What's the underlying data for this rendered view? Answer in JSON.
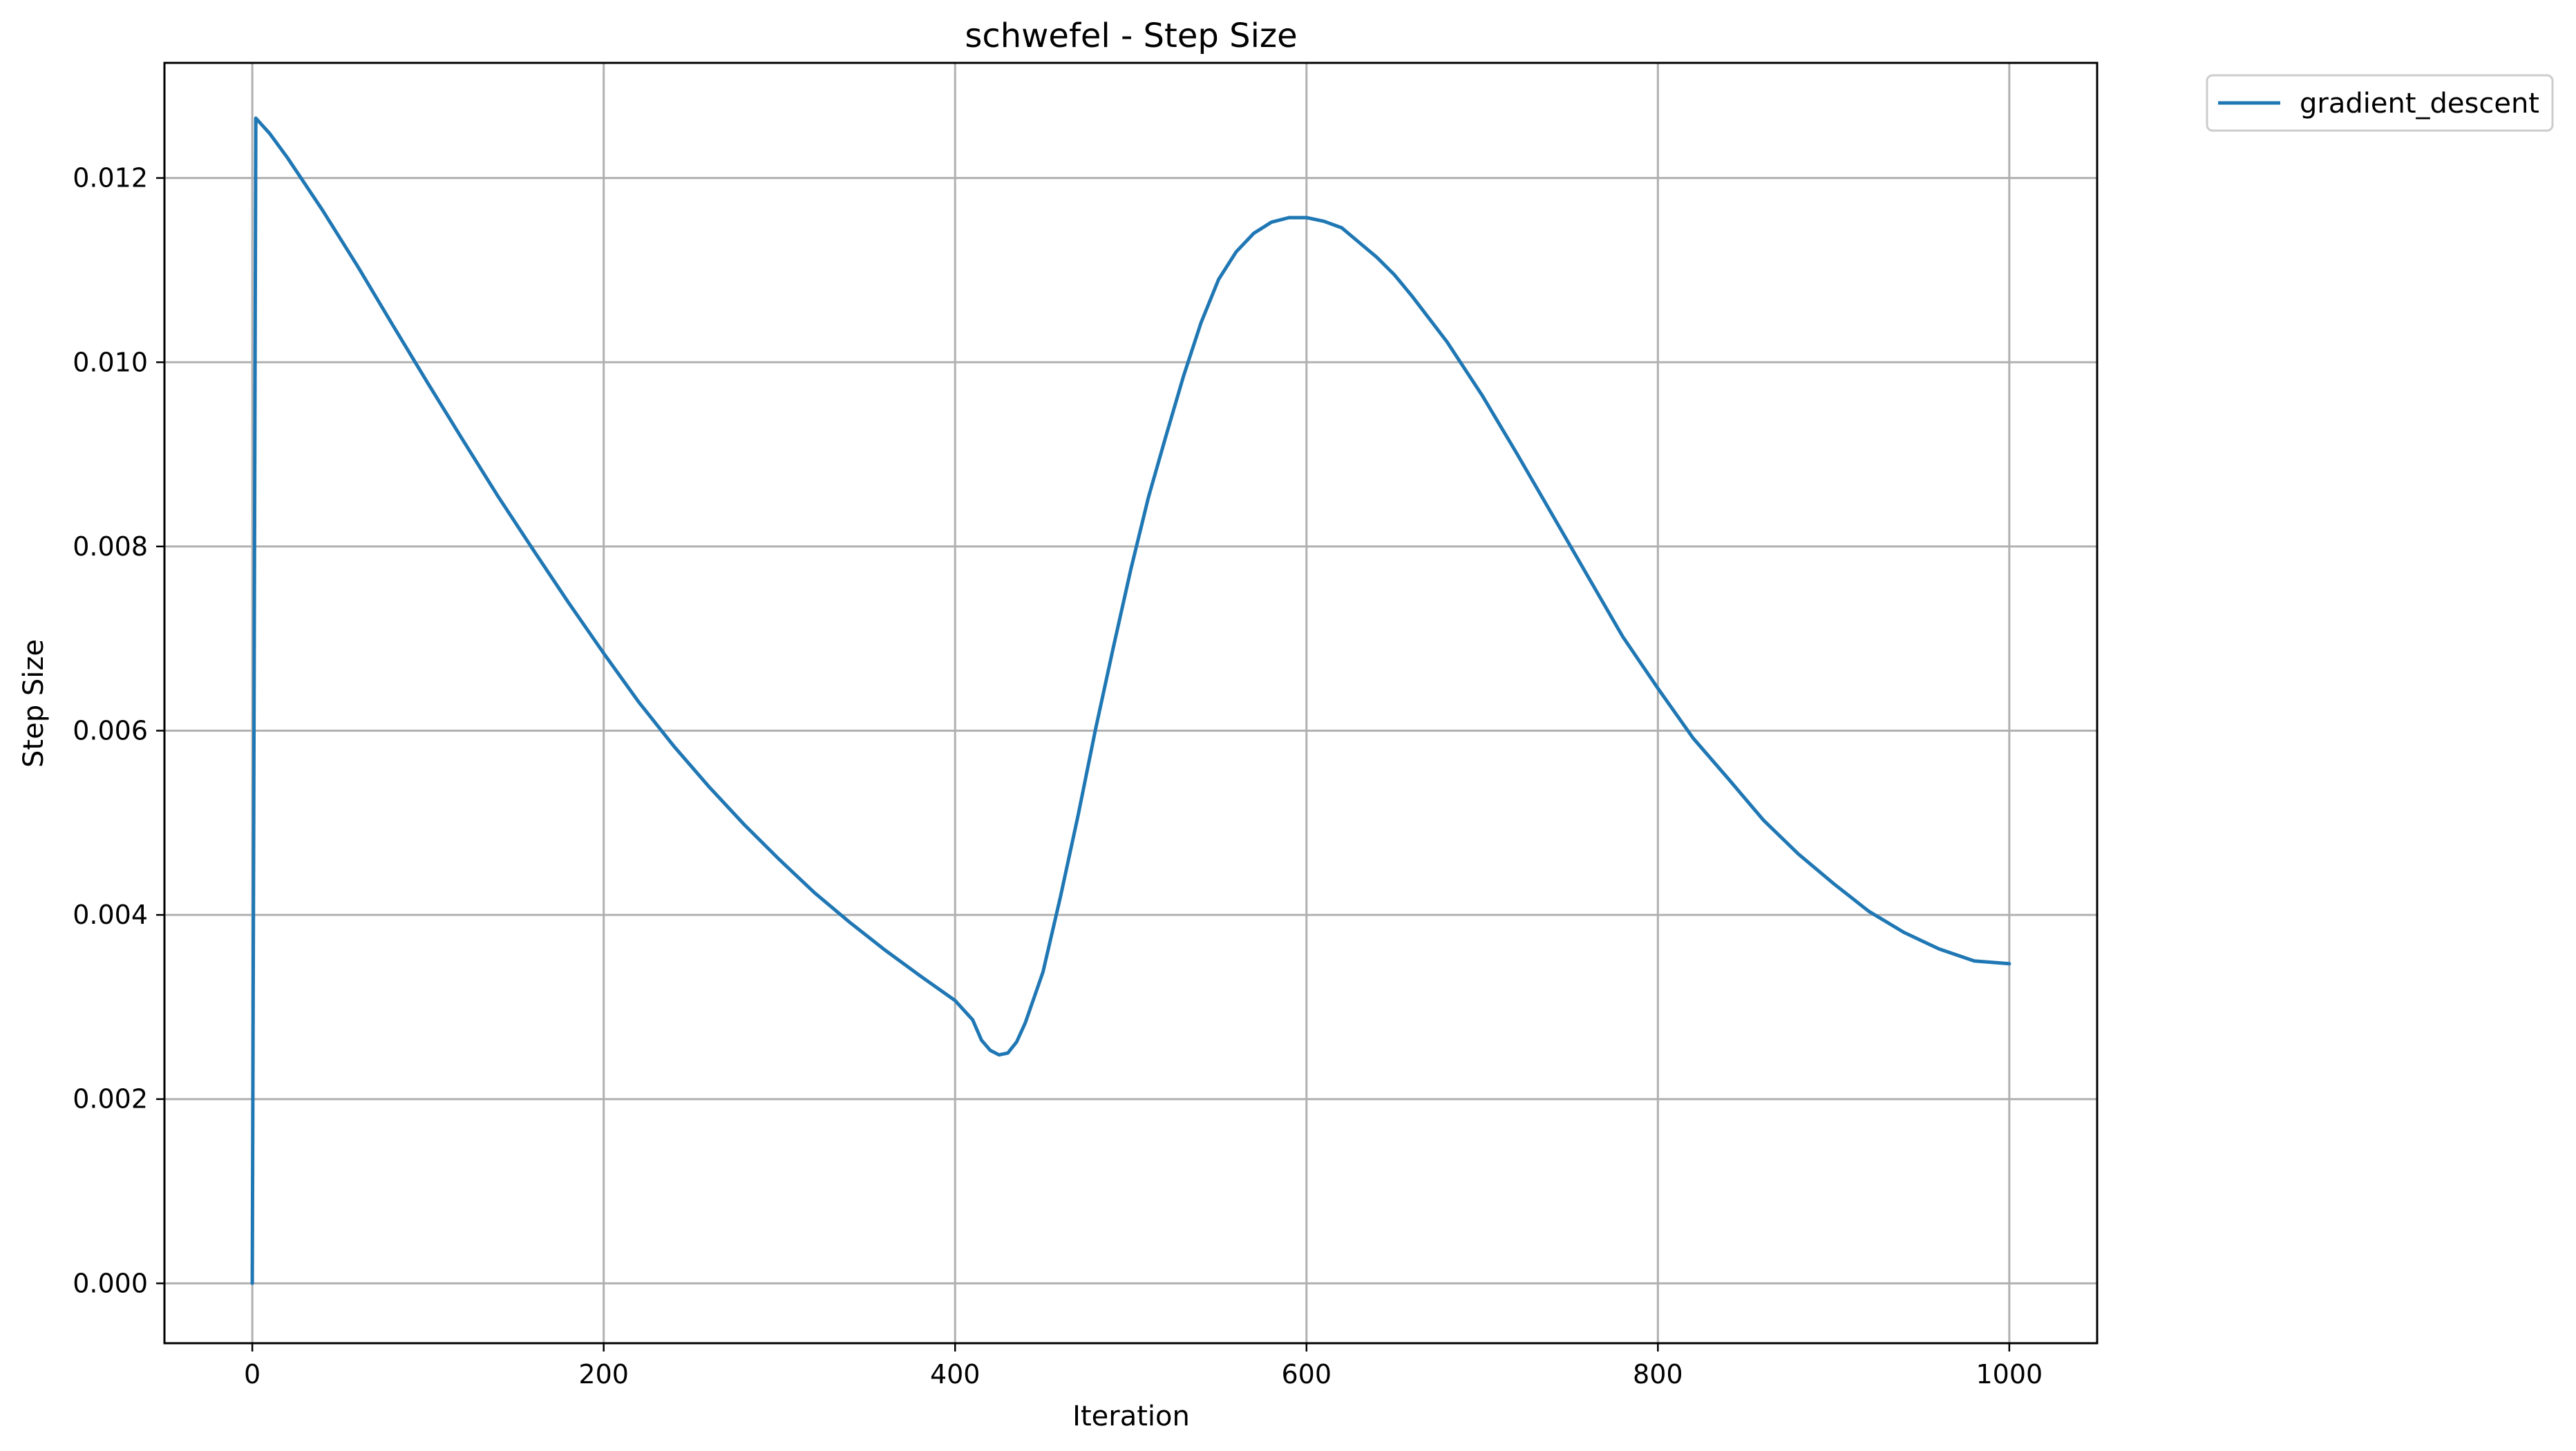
{
  "chart_data": {
    "type": "line",
    "title": "schwefel - Step Size",
    "xlabel": "Iteration",
    "ylabel": "Step Size",
    "xlim": [
      -50,
      1050
    ],
    "ylim": [
      -0.00065,
      0.01325
    ],
    "xticks": [
      0,
      200,
      400,
      600,
      800,
      1000
    ],
    "xtick_labels": [
      "0",
      "200",
      "400",
      "600",
      "800",
      "1000"
    ],
    "yticks": [
      0.0,
      0.002,
      0.004,
      0.006,
      0.008,
      0.01,
      0.012
    ],
    "ytick_labels": [
      "0.000",
      "0.002",
      "0.004",
      "0.006",
      "0.008",
      "0.010",
      "0.012"
    ],
    "grid": true,
    "legend_position": "outside-top-right",
    "colors": {
      "series": "#1f77b4",
      "grid": "#b0b0b0",
      "frame": "#000000"
    },
    "series": [
      {
        "name": "gradient_descent",
        "x": [
          0,
          1,
          2,
          10,
          20,
          40,
          60,
          80,
          100,
          120,
          140,
          160,
          180,
          200,
          220,
          240,
          260,
          280,
          300,
          320,
          340,
          360,
          380,
          400,
          410,
          415,
          420,
          425,
          430,
          435,
          440,
          450,
          460,
          470,
          480,
          490,
          500,
          510,
          520,
          530,
          540,
          550,
          560,
          570,
          580,
          590,
          600,
          605,
          610,
          620,
          630,
          640,
          650,
          660,
          680,
          700,
          720,
          740,
          760,
          780,
          800,
          820,
          840,
          860,
          880,
          900,
          920,
          940,
          960,
          980,
          1000
        ],
        "y": [
          0.0,
          0.00634,
          0.01265,
          0.01248,
          0.01222,
          0.01165,
          0.01104,
          0.0104,
          0.00977,
          0.00915,
          0.00854,
          0.00796,
          0.00739,
          0.00684,
          0.00631,
          0.00583,
          0.00539,
          0.00498,
          0.0046,
          0.00424,
          0.00392,
          0.00362,
          0.00334,
          0.00307,
          0.00286,
          0.00264,
          0.00253,
          0.00248,
          0.0025,
          0.00262,
          0.00283,
          0.00338,
          0.0042,
          0.00508,
          0.00602,
          0.0069,
          0.00775,
          0.00853,
          0.0092,
          0.00985,
          0.01043,
          0.0109,
          0.0112,
          0.0114,
          0.01152,
          0.01157,
          0.01157,
          0.01155,
          0.01153,
          0.01146,
          0.0113,
          0.01114,
          0.01095,
          0.01072,
          0.01022,
          0.00964,
          0.009,
          0.00834,
          0.00768,
          0.00702,
          0.00646,
          0.00592,
          0.00548,
          0.00503,
          0.00466,
          0.00434,
          0.00404,
          0.00381,
          0.00363,
          0.0035,
          0.00347
        ]
      }
    ]
  }
}
